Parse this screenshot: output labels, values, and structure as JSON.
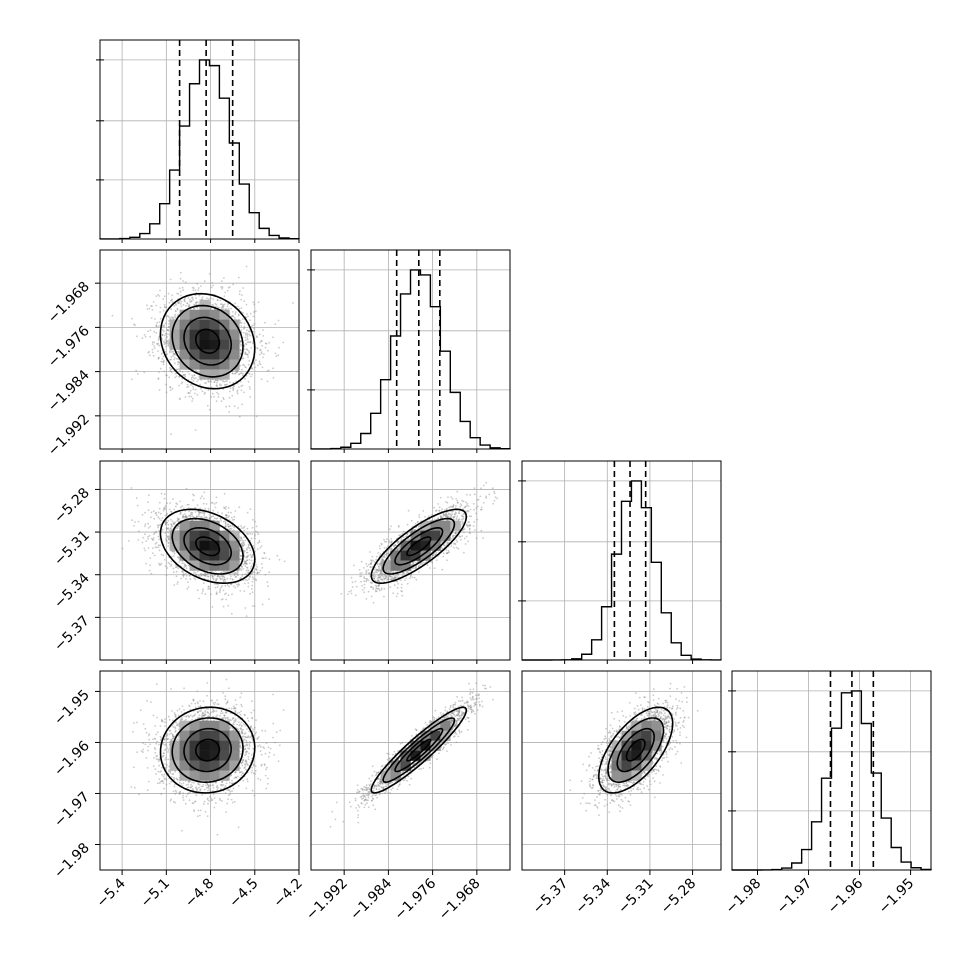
{
  "colors": {
    "ink": "#000000",
    "grid": "#b0b0b0",
    "scatter": "#8c8c8c",
    "density_max": "#000000",
    "density_min": "#ffffff"
  },
  "chart_data": {
    "type": "corner",
    "grid": true,
    "parameters": [
      {
        "name": "",
        "range": [
          -5.55,
          -4.2
        ],
        "ticks": [
          -5.4,
          -5.1,
          -4.8,
          -4.5,
          -4.2
        ],
        "tick_labels": [
          "−5.4",
          "−5.1",
          "−4.8",
          "−4.5",
          "−4.2"
        ],
        "mean": -4.82,
        "sigma": 0.16,
        "quantiles": [
          -5.01,
          -4.83,
          -4.65
        ]
      },
      {
        "name": "",
        "range": [
          -1.998,
          -1.962
        ],
        "ticks": [
          -1.992,
          -1.984,
          -1.976,
          -1.968
        ],
        "tick_labels": [
          "−1.992",
          "−1.984",
          "−1.976",
          "−1.968"
        ],
        "mean": -1.9785,
        "sigma": 0.0043,
        "quantiles": [
          -1.9825,
          -1.9785,
          -1.9747
        ]
      },
      {
        "name": "",
        "range": [
          -5.4,
          -5.26
        ],
        "ticks": [
          -5.37,
          -5.34,
          -5.31,
          -5.28
        ],
        "tick_labels": [
          "−5.37",
          "−5.34",
          "−5.31",
          "−5.28"
        ],
        "mean": -5.32,
        "sigma": 0.013,
        "quantiles": [
          -5.335,
          -5.324,
          -5.313
        ]
      },
      {
        "name": "",
        "range": [
          -1.985,
          -1.946
        ],
        "ticks": [
          -1.98,
          -1.97,
          -1.96,
          -1.95
        ],
        "tick_labels": [
          "−1.98",
          "−1.97",
          "−1.96",
          "−1.95"
        ],
        "mean": -1.9615,
        "sigma": 0.0042,
        "quantiles": [
          -1.9657,
          -1.9615,
          -1.9573
        ]
      }
    ],
    "correlations": {
      "1-0": -0.15,
      "2-0": -0.35,
      "2-1": 0.8,
      "3-0": 0.05,
      "3-1": 0.93,
      "3-2": 0.62
    },
    "contour_levels_sigma": [
      0.5,
      1.0,
      1.5,
      2.0
    ]
  }
}
